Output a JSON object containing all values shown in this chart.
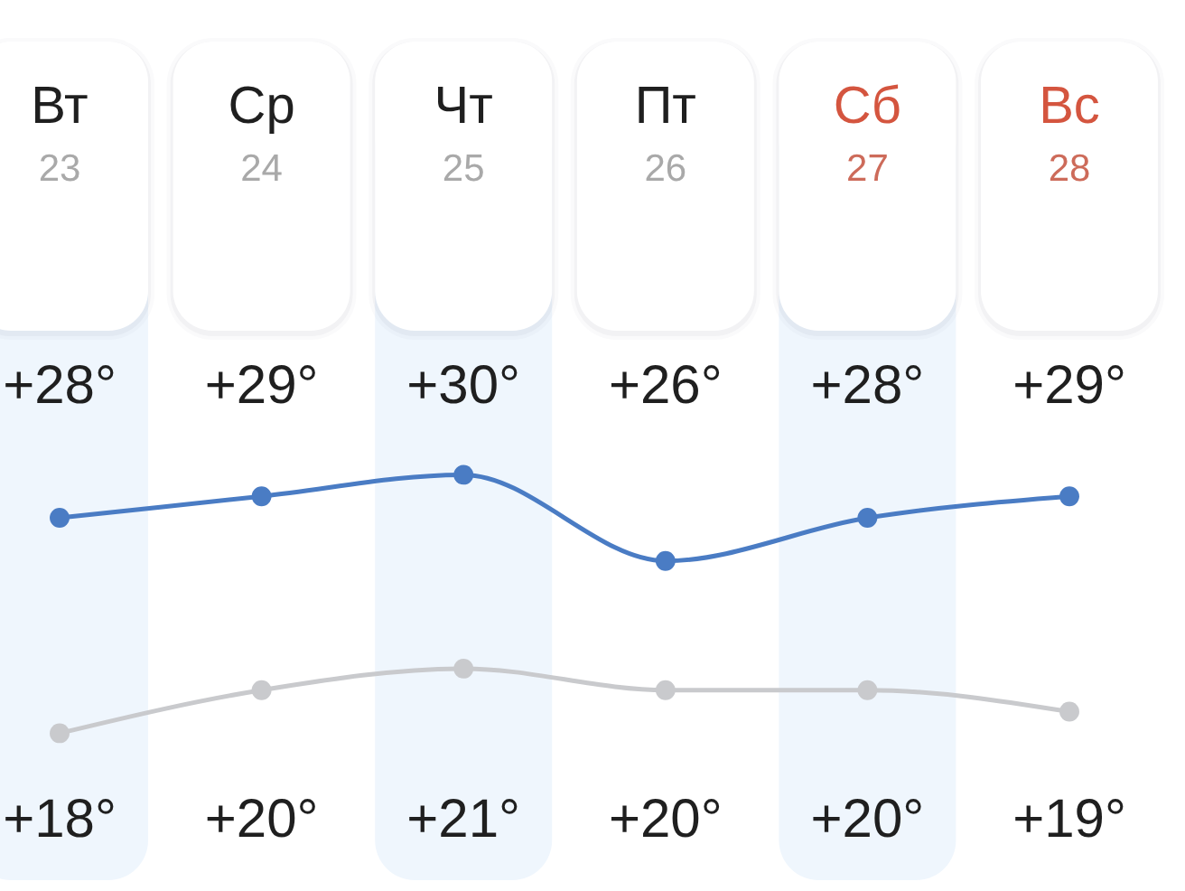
{
  "chart_data": {
    "type": "line",
    "categories": [
      "Вт\n23",
      "Ср\n24",
      "Чт\n25",
      "Пт\n26",
      "Сб\n27",
      "Вс\n28"
    ],
    "series": [
      {
        "color": "#4a7cc4",
        "values": [
          28,
          29,
          30,
          26,
          28,
          29
        ],
        "value_labels": [
          "+28°",
          "+29°",
          "+30°",
          "+26°",
          "+28°",
          "+29°"
        ]
      },
      {
        "color": "#c9cacd",
        "values": [
          18,
          20,
          21,
          20,
          20,
          19
        ],
        "value_labels": [
          "+18°",
          "+20°",
          "+21°",
          "+20°",
          "+20°",
          "+19°"
        ]
      }
    ],
    "marker": "circle",
    "line_style": "solid"
  }
}
